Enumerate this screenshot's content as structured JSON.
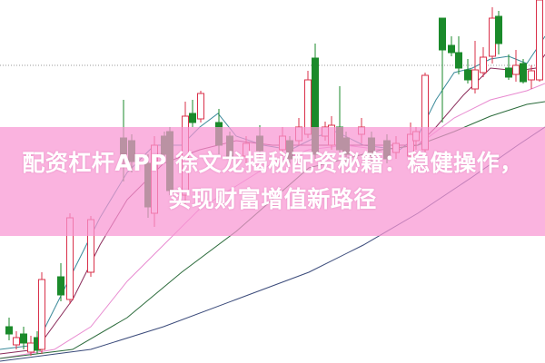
{
  "headline": {
    "line1": "配资杠杆APP 徐文龙揭秘配资秘籍：稳健操作，",
    "line2": "实现财富增值新路径"
  },
  "colors": {
    "up_candle": "#d9304a",
    "down_candle": "#1a8a2a",
    "overlay_band": "#f796d2",
    "headline_text": "#ffffff",
    "reference_line": "#999999"
  }
}
